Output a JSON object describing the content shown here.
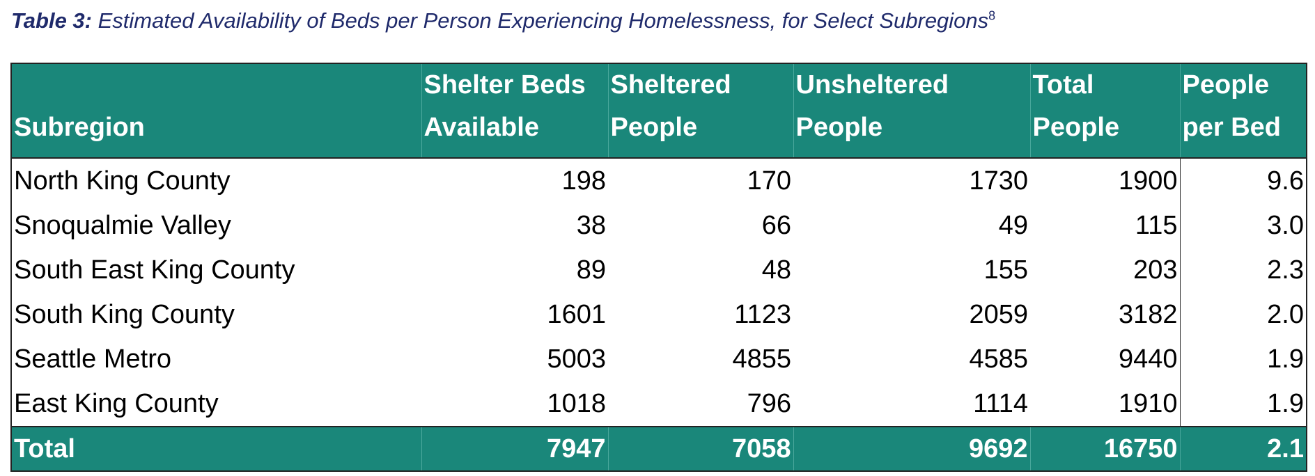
{
  "caption": {
    "label": "Table 3:",
    "text": "Estimated Availability of Beds per Person Experiencing Homelessness, for Select Subregions",
    "footnote": "8"
  },
  "colors": {
    "header_bg": "#1a877a",
    "caption_text": "#1f2a6b"
  },
  "table": {
    "headers": [
      [
        "",
        "Subregion"
      ],
      [
        "Shelter Beds",
        "Available"
      ],
      [
        "Sheltered",
        "People"
      ],
      [
        "Unsheltered",
        "People"
      ],
      [
        "Total",
        "People"
      ],
      [
        "People",
        "per Bed"
      ]
    ],
    "rows": [
      [
        "North King County",
        "198",
        "170",
        "1730",
        "1900",
        "9.6"
      ],
      [
        "Snoqualmie Valley",
        "38",
        "66",
        "49",
        "115",
        "3.0"
      ],
      [
        "South East King County",
        "89",
        "48",
        "155",
        "203",
        "2.3"
      ],
      [
        "South King County",
        "1601",
        "1123",
        "2059",
        "3182",
        "2.0"
      ],
      [
        "Seattle Metro",
        "5003",
        "4855",
        "4585",
        "9440",
        "1.9"
      ],
      [
        "East King County",
        "1018",
        "796",
        "1114",
        "1910",
        "1.9"
      ]
    ],
    "total": [
      "Total",
      "7947",
      "7058",
      "9692",
      "16750",
      "2.1"
    ]
  }
}
